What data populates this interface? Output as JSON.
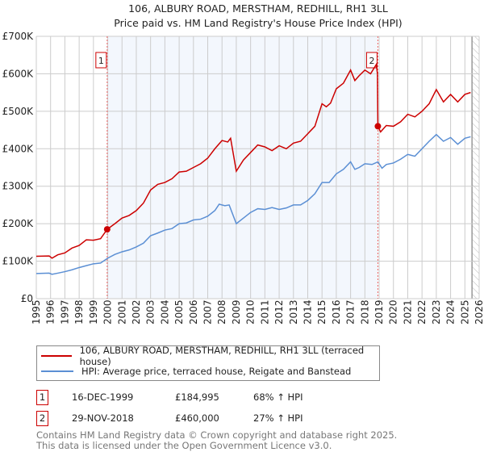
{
  "chart_data": {
    "type": "line",
    "title": "106, ALBURY ROAD, MERSTHAM, REDHILL, RH1 3LL",
    "subtitle": "Price paid vs. HM Land Registry's House Price Index (HPI)",
    "xlim": [
      1995,
      2026
    ],
    "ylim": [
      0,
      700000
    ],
    "y_ticks": [
      {
        "v": 0,
        "label": "£0"
      },
      {
        "v": 100000,
        "label": "£100K"
      },
      {
        "v": 200000,
        "label": "£200K"
      },
      {
        "v": 300000,
        "label": "£300K"
      },
      {
        "v": 400000,
        "label": "£400K"
      },
      {
        "v": 500000,
        "label": "£500K"
      },
      {
        "v": 600000,
        "label": "£600K"
      },
      {
        "v": 700000,
        "label": "£700K"
      }
    ],
    "x_ticks": [
      "1995",
      "1996",
      "1997",
      "1998",
      "1999",
      "2000",
      "2001",
      "2002",
      "2003",
      "2004",
      "2005",
      "2006",
      "2007",
      "2008",
      "2009",
      "2010",
      "2011",
      "2012",
      "2013",
      "2014",
      "2015",
      "2016",
      "2017",
      "2018",
      "2019",
      "2020",
      "2021",
      "2022",
      "2023",
      "2024",
      "2025",
      "2026"
    ],
    "grid": true,
    "shaded_range": [
      1999.96,
      2018.91
    ],
    "forecast_hatch_from": 2025.5,
    "series": [
      {
        "name": "106, ALBURY ROAD, MERSTHAM, REDHILL, RH1 3LL (terraced house)",
        "color": "#cc0000",
        "x": [
          1995,
          1995.9,
          1996.1,
          1996.5,
          1997,
          1997.5,
          1998,
          1998.5,
          1999,
          1999.5,
          1999.96,
          2000.5,
          2001,
          2001.5,
          2002,
          2002.5,
          2003,
          2003.5,
          2004,
          2004.5,
          2005,
          2005.5,
          2006,
          2006.5,
          2007,
          2007.5,
          2008,
          2008.4,
          2008.6,
          2009,
          2009.5,
          2010,
          2010.5,
          2011,
          2011.5,
          2012,
          2012.5,
          2013,
          2013.5,
          2014,
          2014.5,
          2015,
          2015.3,
          2015.6,
          2016,
          2016.5,
          2017,
          2017.3,
          2017.6,
          2018,
          2018.4,
          2018.8,
          2018.88,
          2018.91,
          2019.1,
          2019.5,
          2020,
          2020.5,
          2021,
          2021.5,
          2022,
          2022.5,
          2023,
          2023.5,
          2024,
          2024.5,
          2025,
          2025.4
        ],
        "y": [
          113000,
          114000,
          108000,
          117000,
          122000,
          135000,
          142000,
          157000,
          156000,
          160000,
          184995,
          200000,
          215000,
          222000,
          235000,
          255000,
          290000,
          305000,
          310000,
          320000,
          338000,
          340000,
          350000,
          360000,
          375000,
          400000,
          422000,
          418000,
          428000,
          340000,
          370000,
          390000,
          410000,
          405000,
          395000,
          408000,
          400000,
          415000,
          420000,
          440000,
          460000,
          520000,
          512000,
          522000,
          560000,
          575000,
          610000,
          582000,
          595000,
          610000,
          600000,
          625000,
          600000,
          460000,
          445000,
          462000,
          460000,
          472000,
          492000,
          485000,
          500000,
          520000,
          558000,
          525000,
          545000,
          525000,
          545000,
          550000
        ]
      },
      {
        "name": "HPI: Average price, terraced house, Reigate and Banstead",
        "color": "#5b8fd4",
        "x": [
          1995,
          1995.9,
          1996.1,
          1996.5,
          1997,
          1997.5,
          1998,
          1998.5,
          1999,
          1999.5,
          2000,
          2000.5,
          2001,
          2001.5,
          2002,
          2002.5,
          2003,
          2003.5,
          2004,
          2004.5,
          2005,
          2005.5,
          2006,
          2006.5,
          2007,
          2007.5,
          2007.8,
          2008.2,
          2008.5,
          2009,
          2009.5,
          2010,
          2010.5,
          2011,
          2011.5,
          2012,
          2012.5,
          2013,
          2013.5,
          2014,
          2014.5,
          2015,
          2015.5,
          2016,
          2016.5,
          2017,
          2017.3,
          2017.6,
          2018,
          2018.5,
          2018.91,
          2019.2,
          2019.5,
          2020,
          2020.5,
          2021,
          2021.5,
          2022,
          2022.5,
          2023,
          2023.5,
          2024,
          2024.5,
          2025,
          2025.4
        ],
        "y": [
          67000,
          68000,
          65000,
          68000,
          72000,
          77000,
          83000,
          88000,
          93000,
          95000,
          108000,
          118000,
          125000,
          130000,
          138000,
          148000,
          168000,
          175000,
          183000,
          187000,
          200000,
          202000,
          210000,
          212000,
          220000,
          235000,
          252000,
          248000,
          250000,
          200000,
          215000,
          230000,
          240000,
          238000,
          243000,
          238000,
          242000,
          250000,
          250000,
          262000,
          280000,
          310000,
          310000,
          333000,
          345000,
          365000,
          345000,
          350000,
          360000,
          358000,
          365000,
          348000,
          358000,
          362000,
          372000,
          385000,
          380000,
          400000,
          420000,
          438000,
          420000,
          430000,
          412000,
          428000,
          432000
        ]
      }
    ],
    "sales": [
      {
        "label": "1",
        "date": "16-DEC-1999",
        "x": 1999.96,
        "price": "£184,995",
        "value": 184995,
        "hpi": "68% ↑ HPI"
      },
      {
        "label": "2",
        "date": "29-NOV-2018",
        "x": 2018.91,
        "price": "£460,000",
        "value": 460000,
        "hpi": "27% ↑ HPI"
      }
    ]
  },
  "legend": {
    "items": [
      {
        "label": "106, ALBURY ROAD, MERSTHAM, REDHILL, RH1 3LL (terraced house)",
        "color": "#cc0000"
      },
      {
        "label": "HPI: Average price, terraced house, Reigate and Banstead",
        "color": "#5b8fd4"
      }
    ]
  },
  "footer": {
    "line1": "Contains HM Land Registry data © Crown copyright and database right 2025.",
    "line2": "This data is licensed under the Open Government Licence v3.0."
  }
}
